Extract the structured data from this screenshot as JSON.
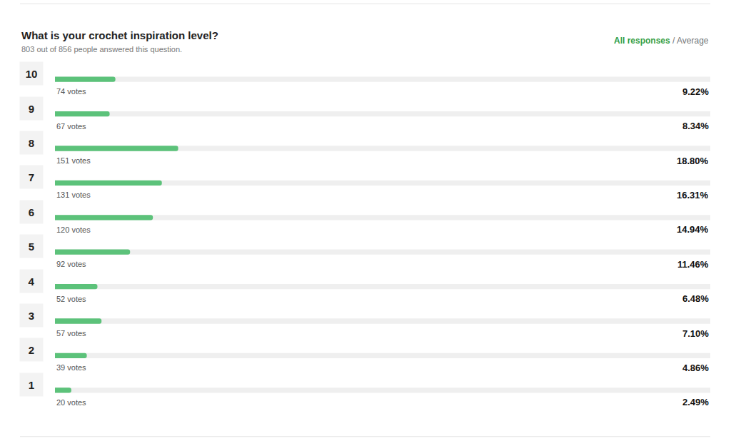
{
  "chart_data": {
    "type": "bar",
    "orientation": "horizontal",
    "title": "What is your crochet inspiration level?",
    "subtitle": "803 out of 856 people answered this question.",
    "view_options": {
      "active": "All responses",
      "separator": "/",
      "other": "Average"
    },
    "categories": [
      "10",
      "9",
      "8",
      "7",
      "6",
      "5",
      "4",
      "3",
      "2",
      "1"
    ],
    "values": [
      9.22,
      8.34,
      18.8,
      16.31,
      14.94,
      11.46,
      6.48,
      7.1,
      4.86,
      2.49
    ],
    "value_labels": [
      "9.22%",
      "8.34%",
      "18.80%",
      "16.31%",
      "14.94%",
      "11.46%",
      "6.48%",
      "7.10%",
      "4.86%",
      "2.49%"
    ],
    "vote_labels": [
      "74 votes",
      "67 votes",
      "151 votes",
      "131 votes",
      "120 votes",
      "92 votes",
      "52 votes",
      "57 votes",
      "39 votes",
      "20 votes"
    ],
    "color": "#5cc27a",
    "xlim": [
      0,
      100
    ],
    "data_labels": true,
    "grid": false
  }
}
